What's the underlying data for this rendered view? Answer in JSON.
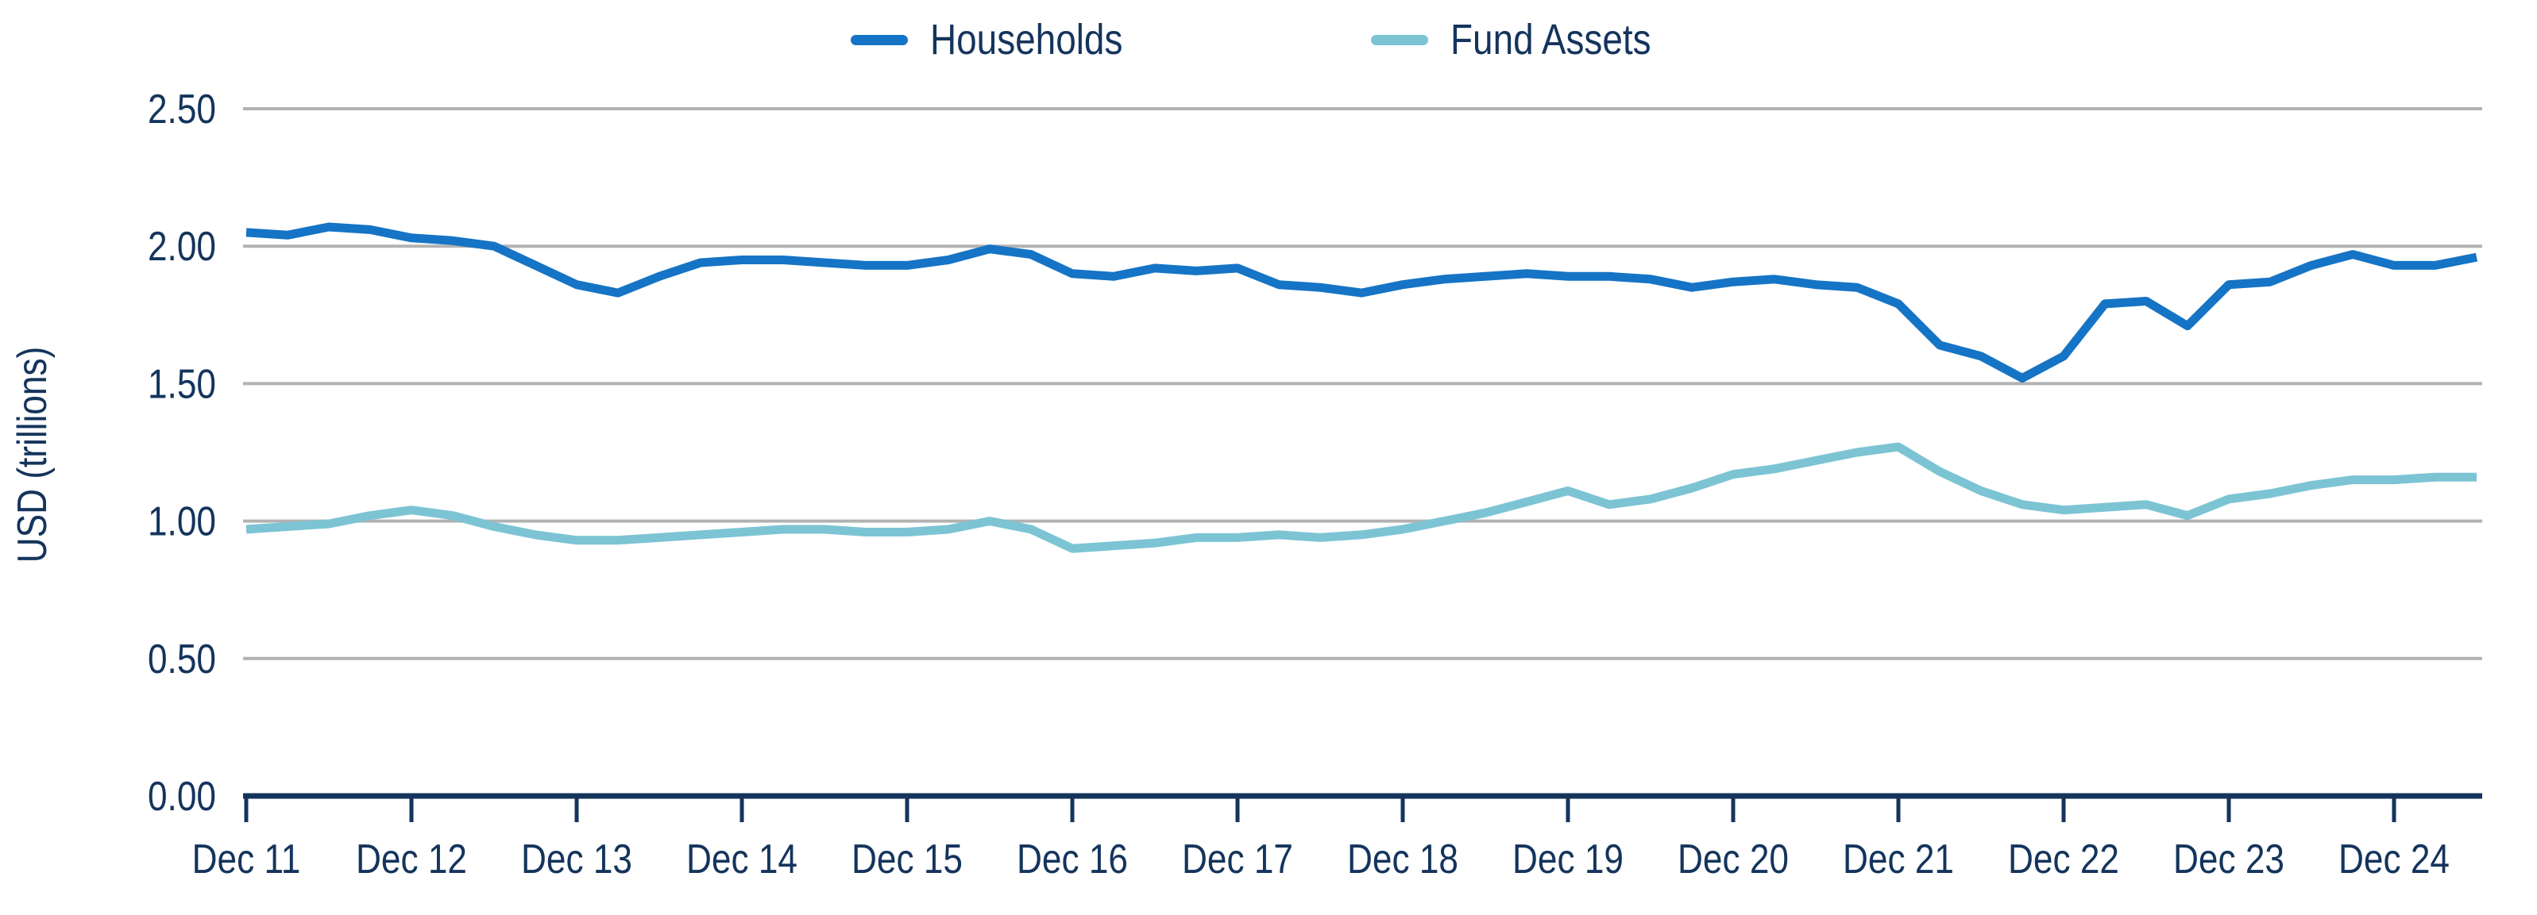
{
  "chart_data": {
    "type": "line",
    "title": "",
    "ylabel": "USD (trillions)",
    "xlabel": "",
    "ylim": [
      0,
      2.5
    ],
    "yticks": [
      0,
      0.5,
      1.0,
      1.5,
      2.0,
      2.5
    ],
    "ytick_labels": [
      "0.00",
      "0.50",
      "1.00",
      "1.50",
      "2.00",
      "2.50"
    ],
    "xtick_labels": [
      "Dec 11",
      "Dec 12",
      "Dec 13",
      "Dec 14",
      "Dec 15",
      "Dec 16",
      "Dec 17",
      "Dec 18",
      "Dec 19",
      "Dec 20",
      "Dec 21",
      "Dec 22",
      "Dec 23",
      "Dec 24"
    ],
    "points_per_tick": 4,
    "grid": "horizontal",
    "legend_position": "top-center",
    "colors": {
      "axis": "#14345C",
      "grid": "#B2B2B2",
      "text": "#14345C",
      "background": "#FFFFFF"
    },
    "series": [
      {
        "name": "Households",
        "color": "#1574C5",
        "values": [
          2.05,
          2.04,
          2.07,
          2.06,
          2.03,
          2.02,
          2.0,
          1.93,
          1.86,
          1.83,
          1.89,
          1.94,
          1.95,
          1.95,
          1.94,
          1.93,
          1.93,
          1.95,
          1.99,
          1.97,
          1.9,
          1.89,
          1.92,
          1.91,
          1.92,
          1.86,
          1.85,
          1.83,
          1.86,
          1.88,
          1.89,
          1.9,
          1.89,
          1.89,
          1.88,
          1.85,
          1.87,
          1.88,
          1.86,
          1.85,
          1.79,
          1.64,
          1.6,
          1.52,
          1.6,
          1.79,
          1.8,
          1.71,
          1.86,
          1.87,
          1.93,
          1.97,
          1.93,
          1.93,
          1.96
        ]
      },
      {
        "name": "Fund Assets",
        "color": "#7CC4D4",
        "values": [
          0.97,
          0.98,
          0.99,
          1.02,
          1.04,
          1.02,
          0.98,
          0.95,
          0.93,
          0.93,
          0.94,
          0.95,
          0.96,
          0.97,
          0.97,
          0.96,
          0.96,
          0.97,
          1.0,
          0.97,
          0.9,
          0.91,
          0.92,
          0.94,
          0.94,
          0.95,
          0.94,
          0.95,
          0.97,
          1.0,
          1.03,
          1.07,
          1.11,
          1.06,
          1.08,
          1.12,
          1.17,
          1.19,
          1.22,
          1.25,
          1.27,
          1.18,
          1.11,
          1.06,
          1.04,
          1.05,
          1.06,
          1.02,
          1.08,
          1.1,
          1.13,
          1.15,
          1.15,
          1.16,
          1.16
        ]
      }
    ]
  }
}
